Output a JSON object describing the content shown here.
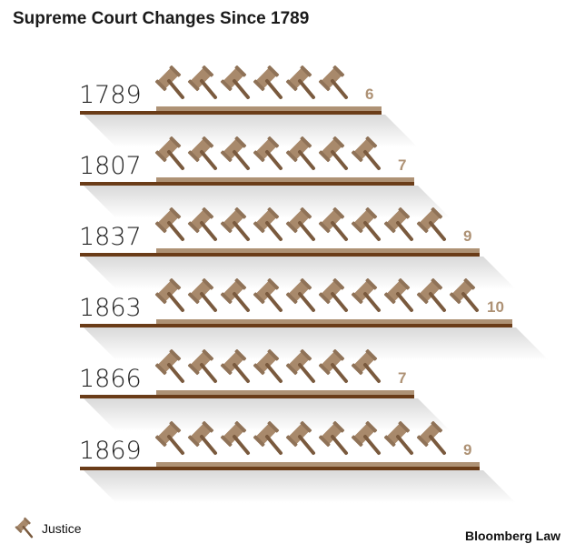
{
  "chart_data": {
    "type": "pictogram",
    "title": "Supreme Court Changes Since 1789",
    "categories": [
      "1789",
      "1807",
      "1837",
      "1863",
      "1866",
      "1869"
    ],
    "values": [
      6,
      7,
      9,
      10,
      7,
      9
    ],
    "value_labels": [
      "6",
      "7",
      "9",
      "10",
      "7",
      "9"
    ],
    "legend": [
      {
        "icon": "gavel-icon",
        "label": "Justice"
      }
    ],
    "colors": {
      "gavel": "#a8896b",
      "bar_light": "#ae9275",
      "bar_dark": "#6a3c18",
      "count": "#ae9275"
    }
  },
  "brand": "Bloomberg Law"
}
